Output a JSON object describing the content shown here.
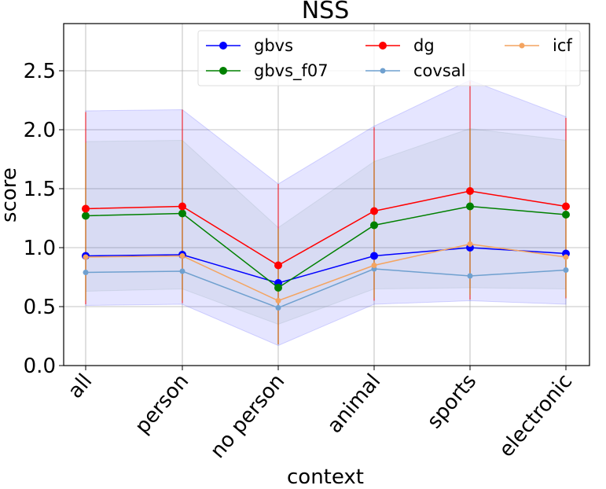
{
  "chart_data": {
    "type": "line",
    "title": "NSS",
    "xlabel": "context",
    "ylabel": "score",
    "categories": [
      "all",
      "person",
      "no person",
      "animal",
      "sports",
      "electronic"
    ],
    "ylim": [
      0.0,
      2.9
    ],
    "yticks": [
      0.0,
      0.5,
      1.0,
      1.5,
      2.0,
      2.5
    ],
    "ytick_labels": [
      "0.0",
      "0.5",
      "1.0",
      "1.5",
      "2.0",
      "2.5"
    ],
    "grid": true,
    "legend_position": "top-right",
    "legend_columns": 3,
    "series": [
      {
        "name": "gbvs",
        "color": "#0000ff",
        "marker": "circle",
        "values": [
          0.93,
          0.94,
          0.7,
          0.93,
          1.0,
          0.95
        ]
      },
      {
        "name": "gbvs_f07",
        "color": "#008000",
        "marker": "circle",
        "values": [
          1.27,
          1.29,
          0.66,
          1.19,
          1.35,
          1.28
        ]
      },
      {
        "name": "dg",
        "color": "#ff0000",
        "marker": "circle",
        "values": [
          1.33,
          1.35,
          0.85,
          1.31,
          1.48,
          1.35
        ]
      },
      {
        "name": "covsal",
        "color": "#6fa0cf",
        "marker": "circle",
        "values": [
          0.79,
          0.8,
          0.49,
          0.82,
          0.76,
          0.81
        ]
      },
      {
        "name": "icf",
        "color": "#f4a460",
        "marker": "circle",
        "values": [
          0.92,
          0.93,
          0.55,
          0.85,
          1.03,
          0.92
        ]
      }
    ],
    "bands": [
      {
        "series": "gbvs",
        "color": "#0000ff",
        "lower": [
          0.51,
          0.52,
          0.17,
          0.52,
          0.55,
          0.52
        ],
        "upper": [
          2.16,
          2.17,
          1.54,
          2.03,
          2.42,
          2.11
        ]
      },
      {
        "series": "gbvs_f07",
        "color": "#6b8e8e",
        "lower": [
          0.63,
          0.65,
          0.35,
          0.65,
          0.66,
          0.65
        ],
        "upper": [
          1.9,
          1.91,
          1.17,
          1.73,
          2.01,
          1.91
        ]
      }
    ],
    "error_bars": [
      {
        "color": "#ff0000",
        "lower": [
          0.52,
          0.53,
          0.18,
          0.55,
          0.56,
          0.57
        ],
        "upper": [
          2.15,
          2.17,
          1.54,
          2.02,
          2.41,
          2.1
        ]
      },
      {
        "color": "#b8860b",
        "lower": [
          0.55,
          0.55,
          0.18,
          0.57,
          0.6,
          0.58
        ],
        "upper": [
          1.89,
          1.91,
          1.16,
          1.74,
          2.01,
          1.91
        ]
      }
    ]
  }
}
